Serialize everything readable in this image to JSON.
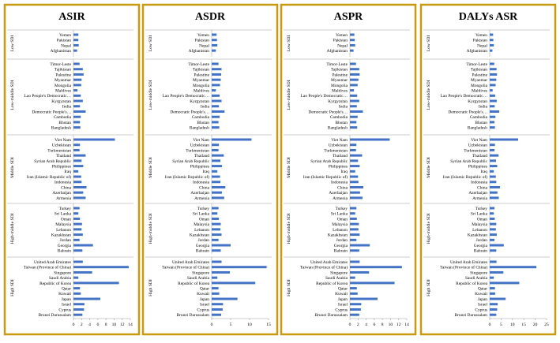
{
  "theme": {
    "panel_border": "#c89a12",
    "bar": "#4472c4",
    "axis": "#9a9a9a",
    "text": "#000000"
  },
  "chart_data": [
    {
      "type": "bar",
      "orientation": "horizontal",
      "title": "ASIR",
      "xlim": [
        0,
        14
      ],
      "xticks": [
        "0",
        "2",
        "4",
        "6",
        "8",
        "10",
        "12",
        "14"
      ],
      "groups": [
        {
          "label": "Low SDI",
          "categories": [
            "Yemen",
            "Pakistan",
            "Nepal",
            "Afghanistan"
          ],
          "values": [
            1.2,
            1.2,
            1.3,
            0.9
          ]
        },
        {
          "label": "Low-middle SDI",
          "categories": [
            "Timor-Leste",
            "Tajikistan",
            "Palestine",
            "Myanmar",
            "Mongolia",
            "Maldives",
            "Lao People's Democratic…",
            "Kyrgyzstan",
            "India",
            "Democratic People's…",
            "Cambodia",
            "Bhutan",
            "Bangladesh"
          ],
          "values": [
            1.5,
            2.3,
            2.5,
            2.0,
            1.9,
            1.0,
            1.8,
            2.3,
            1.6,
            3.0,
            1.8,
            1.6,
            1.7
          ]
        },
        {
          "label": "Middle SDI",
          "categories": [
            "Viet Nam",
            "Uzbekistan",
            "Turkmenistan",
            "Thailand",
            "Syrian Arab Republic",
            "Philippines",
            "Iraq",
            "Iran (Islamic Republic of)",
            "Indonesia",
            "China",
            "Azerbaijan",
            "Armenia"
          ],
          "values": [
            10.2,
            1.6,
            1.5,
            3.0,
            2.0,
            2.4,
            1.2,
            1.9,
            2.0,
            3.2,
            2.4,
            3.0
          ]
        },
        {
          "label": "High-middle SDI",
          "categories": [
            "Turkey",
            "Sri Lanka",
            "Oman",
            "Malaysia",
            "Lebanon",
            "Kazakhstan",
            "Jordan",
            "Georgia",
            "Bahrain"
          ],
          "values": [
            1.5,
            1.2,
            1.6,
            2.1,
            2.0,
            2.3,
            1.5,
            4.8,
            2.2
          ]
        },
        {
          "label": "High SDI",
          "categories": [
            "United Arab Emirates",
            "Taiwan (Province of China)",
            "Singapore",
            "Saudi Arabia",
            "Republic of Korea",
            "Qatar",
            "Kuwait",
            "Japan",
            "Israel",
            "Cyprus",
            "Brunei Darussalam"
          ],
          "values": [
            2.3,
            13.6,
            4.6,
            1.2,
            11.2,
            1.6,
            1.8,
            6.6,
            2.7,
            2.6,
            2.2
          ]
        }
      ]
    },
    {
      "type": "bar",
      "orientation": "horizontal",
      "title": "ASDR",
      "xlim": [
        0,
        15
      ],
      "xticks": [
        "0",
        "5",
        "10",
        "15"
      ],
      "groups": [
        {
          "label": "Low SDI",
          "categories": [
            "Yemen",
            "Pakistan",
            "Nepal",
            "Afghanistan"
          ],
          "values": [
            1.3,
            1.4,
            1.5,
            1.1
          ]
        },
        {
          "label": "Low-middle SDI",
          "categories": [
            "Timor-Leste",
            "Tajikistan",
            "Palestine",
            "Myanmar",
            "Mongolia",
            "Maldives",
            "Lao People's Democratic…",
            "Kyrgyzstan",
            "India",
            "Democratic People's…",
            "Cambodia",
            "Bhutan",
            "Bangladesh"
          ],
          "values": [
            1.8,
            2.6,
            2.5,
            2.4,
            2.2,
            1.1,
            2.1,
            2.6,
            1.9,
            3.4,
            2.1,
            1.8,
            2.0
          ]
        },
        {
          "label": "Middle SDI",
          "categories": [
            "Viet Nam",
            "Uzbekistan",
            "Turkmenistan",
            "Thailand",
            "Syrian Arab Republic",
            "Philippines",
            "Iraq",
            "Iran (Islamic Republic of)",
            "Indonesia",
            "China",
            "Azerbaijan",
            "Armenia"
          ],
          "values": [
            10.5,
            1.9,
            1.8,
            3.2,
            2.3,
            2.7,
            1.5,
            2.2,
            2.3,
            3.6,
            2.7,
            3.3
          ]
        },
        {
          "label": "High-middle SDI",
          "categories": [
            "Turkey",
            "Sri Lanka",
            "Oman",
            "Malaysia",
            "Lebanon",
            "Kazakhstan",
            "Jordan",
            "Georgia",
            "Bahrain"
          ],
          "values": [
            1.8,
            1.5,
            1.9,
            2.4,
            2.3,
            2.6,
            1.8,
            5.0,
            2.4
          ]
        },
        {
          "label": "High SDI",
          "categories": [
            "United Arab Emirates",
            "Taiwan (Province of China)",
            "Singapore",
            "Saudi Arabia",
            "Republic of Korea",
            "Qatar",
            "Kuwait",
            "Japan",
            "Israel",
            "Cyprus",
            "Brunei Darussalam"
          ],
          "values": [
            2.6,
            14.5,
            4.8,
            1.5,
            11.5,
            1.8,
            2.0,
            6.8,
            3.0,
            2.9,
            2.5
          ]
        }
      ]
    },
    {
      "type": "bar",
      "orientation": "horizontal",
      "title": "ASPR",
      "xlim": [
        0,
        14
      ],
      "xticks": [
        "0",
        "2",
        "4",
        "6",
        "8",
        "10",
        "12",
        "14"
      ],
      "groups": [
        {
          "label": "Low SDI",
          "categories": [
            "Yemen",
            "Pakistan",
            "Nepal",
            "Afghanistan"
          ],
          "values": [
            1.1,
            1.2,
            1.3,
            0.9
          ]
        },
        {
          "label": "Low-middle SDI",
          "categories": [
            "Timor-Leste",
            "Tajikistan",
            "Palestine",
            "Myanmar",
            "Mongolia",
            "Maldives",
            "Lao People's Democratic…",
            "Kyrgyzstan",
            "India",
            "Democratic People's…",
            "Cambodia",
            "Bhutan",
            "Bangladesh"
          ],
          "values": [
            1.5,
            2.3,
            2.4,
            2.1,
            1.9,
            1.0,
            1.8,
            2.3,
            1.7,
            3.2,
            1.9,
            1.6,
            1.8
          ]
        },
        {
          "label": "Middle SDI",
          "categories": [
            "Viet Nam",
            "Uzbekistan",
            "Turkmenistan",
            "Thailand",
            "Syrian Arab Republic",
            "Philippines",
            "Iraq",
            "Iran (Islamic Republic of)",
            "Indonesia",
            "China",
            "Azerbaijan",
            "Armenia"
          ],
          "values": [
            9.8,
            1.6,
            1.5,
            3.0,
            2.0,
            2.4,
            1.3,
            2.0,
            2.1,
            3.3,
            2.5,
            3.1
          ]
        },
        {
          "label": "High-middle SDI",
          "categories": [
            "Turkey",
            "Sri Lanka",
            "Oman",
            "Malaysia",
            "Lebanon",
            "Kazakhstan",
            "Jordan",
            "Georgia",
            "Bahrain"
          ],
          "values": [
            1.6,
            1.3,
            1.7,
            2.2,
            2.1,
            2.4,
            1.6,
            4.9,
            2.3
          ]
        },
        {
          "label": "High SDI",
          "categories": [
            "United Arab Emirates",
            "Taiwan (Province of China)",
            "Singapore",
            "Saudi Arabia",
            "Republic of Korea",
            "Qatar",
            "Kuwait",
            "Japan",
            "Israel",
            "Cyprus",
            "Brunei Darussalam"
          ],
          "values": [
            2.4,
            12.8,
            4.7,
            1.3,
            11.0,
            1.7,
            1.9,
            6.8,
            2.8,
            2.7,
            2.3
          ]
        }
      ]
    },
    {
      "type": "bar",
      "orientation": "horizontal",
      "title": "DALYs ASR",
      "xlim": [
        0,
        25
      ],
      "xticks": [
        "0",
        "5",
        "10",
        "15",
        "20",
        "25"
      ],
      "groups": [
        {
          "label": "Low SDI",
          "categories": [
            "Yemen",
            "Pakistan",
            "Nepal",
            "Afghanistan"
          ],
          "values": [
            1.5,
            1.6,
            1.8,
            1.2
          ]
        },
        {
          "label": "Low-middle SDI",
          "categories": [
            "Timor-Leste",
            "Tajikistan",
            "Palestine",
            "Myanmar",
            "Mongolia",
            "Maldives",
            "Lao People's Democratic…",
            "Kyrgyzstan",
            "India",
            "Democratic People's…",
            "Cambodia",
            "Bhutan",
            "Bangladesh"
          ],
          "values": [
            2.0,
            3.0,
            3.2,
            2.9,
            2.6,
            1.3,
            2.4,
            3.1,
            2.2,
            4.2,
            2.5,
            2.1,
            2.3
          ]
        },
        {
          "label": "Middle SDI",
          "categories": [
            "Viet Nam",
            "Uzbekistan",
            "Turkmenistan",
            "Thailand",
            "Syrian Arab Republic",
            "Philippines",
            "Iraq",
            "Iran (Islamic Republic of)",
            "Indonesia",
            "China",
            "Azerbaijan",
            "Armenia"
          ],
          "values": [
            12.5,
            2.3,
            2.1,
            3.9,
            2.8,
            3.3,
            1.8,
            2.7,
            2.9,
            4.5,
            3.4,
            4.0
          ]
        },
        {
          "label": "High-middle SDI",
          "categories": [
            "Turkey",
            "Sri Lanka",
            "Oman",
            "Malaysia",
            "Lebanon",
            "Kazakhstan",
            "Jordan",
            "Georgia",
            "Bahrain"
          ],
          "values": [
            2.1,
            1.8,
            2.2,
            2.9,
            2.7,
            3.1,
            2.1,
            6.2,
            2.9
          ]
        },
        {
          "label": "High SDI",
          "categories": [
            "United Arab Emirates",
            "Taiwan (Province of China)",
            "Singapore",
            "Saudi Arabia",
            "Republic of Korea",
            "Qatar",
            "Kuwait",
            "Japan",
            "Israel",
            "Cyprus",
            "Brunei Darussalam"
          ],
          "values": [
            3.0,
            20.5,
            6.0,
            1.8,
            13.0,
            2.3,
            2.4,
            7.0,
            3.5,
            3.3,
            2.9
          ]
        }
      ]
    }
  ]
}
